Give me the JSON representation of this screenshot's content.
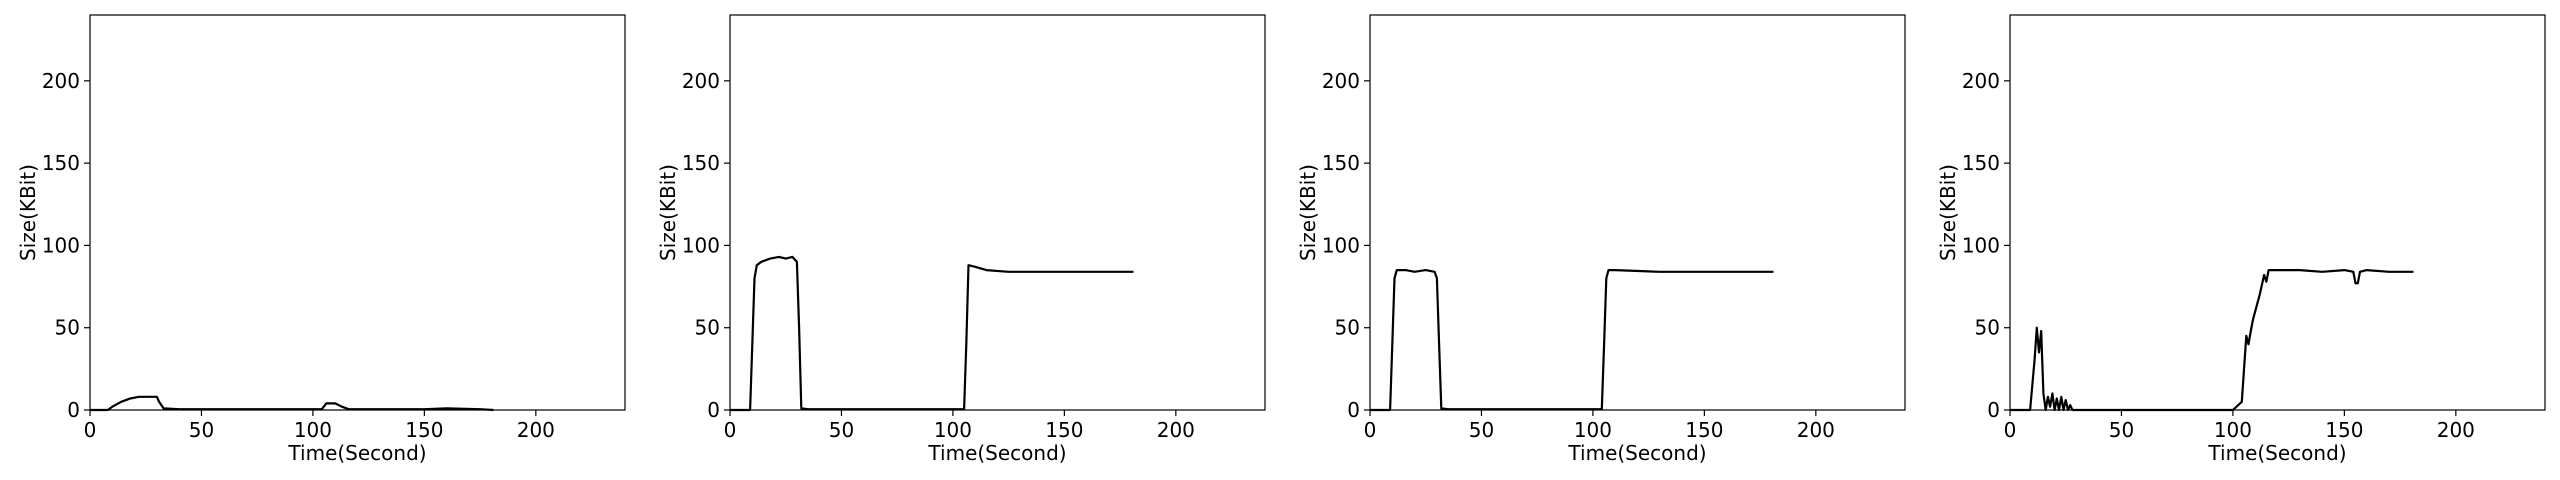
{
  "chart_data": [
    {
      "type": "line",
      "title": "",
      "xlabel": "Time(Second)",
      "ylabel": "Size(KBit)",
      "xlim": [
        0,
        240
      ],
      "ylim": [
        0,
        240
      ],
      "xticks": [
        0,
        50,
        100,
        150,
        200
      ],
      "yticks": [
        0,
        50,
        100,
        150,
        200
      ],
      "grid": false,
      "series": [
        {
          "color": "#000000",
          "x": [
            0,
            8,
            10,
            14,
            18,
            22,
            26,
            30,
            31,
            33,
            40,
            60,
            80,
            100,
            104,
            106,
            110,
            113,
            116,
            130,
            150,
            160,
            175,
            181
          ],
          "y": [
            0,
            0,
            2,
            5,
            7,
            8,
            8,
            8,
            5,
            1,
            0.5,
            0.5,
            0.5,
            0.5,
            0.5,
            4,
            4,
            2,
            0.5,
            0.5,
            0.5,
            1,
            0.5,
            0
          ]
        }
      ]
    },
    {
      "type": "line",
      "title": "",
      "xlabel": "Time(Second)",
      "ylabel": "Size(KBit)",
      "xlim": [
        0,
        240
      ],
      "ylim": [
        0,
        240
      ],
      "xticks": [
        0,
        50,
        100,
        150,
        200
      ],
      "yticks": [
        0,
        50,
        100,
        150,
        200
      ],
      "grid": false,
      "series": [
        {
          "color": "#000000",
          "x": [
            0,
            9,
            10,
            11,
            12,
            14,
            18,
            22,
            25,
            28,
            30,
            31,
            32,
            35,
            60,
            80,
            100,
            105,
            106,
            107,
            110,
            115,
            125,
            140,
            160,
            175,
            181
          ],
          "y": [
            0,
            0,
            40,
            80,
            88,
            90,
            92,
            93,
            92,
            93,
            90,
            50,
            1,
            0.5,
            0.5,
            0.5,
            0.5,
            0.5,
            40,
            88,
            87,
            85,
            84,
            84,
            84,
            84,
            84
          ]
        }
      ]
    },
    {
      "type": "line",
      "title": "",
      "xlabel": "Time(Second)",
      "ylabel": "Size(KBit)",
      "xlim": [
        0,
        240
      ],
      "ylim": [
        0,
        240
      ],
      "xticks": [
        0,
        50,
        100,
        150,
        200
      ],
      "yticks": [
        0,
        50,
        100,
        150,
        200
      ],
      "grid": false,
      "series": [
        {
          "color": "#000000",
          "x": [
            0,
            9,
            10,
            11,
            12,
            16,
            20,
            25,
            29,
            30,
            31,
            32,
            35,
            60,
            80,
            100,
            104,
            105,
            106,
            107,
            110,
            130,
            150,
            170,
            181
          ],
          "y": [
            0,
            0,
            40,
            80,
            85,
            85,
            84,
            85,
            84,
            80,
            40,
            1,
            0.5,
            0.5,
            0.5,
            0.5,
            0.5,
            40,
            80,
            85,
            85,
            84,
            84,
            84,
            84
          ]
        }
      ]
    },
    {
      "type": "line",
      "title": "",
      "xlabel": "Time(Second)",
      "ylabel": "Size(KBit)",
      "xlim": [
        0,
        240
      ],
      "ylim": [
        0,
        240
      ],
      "xticks": [
        0,
        50,
        100,
        150,
        200
      ],
      "yticks": [
        0,
        50,
        100,
        150,
        200
      ],
      "grid": false,
      "series": [
        {
          "color": "#000000",
          "x": [
            0,
            9,
            11,
            12,
            13,
            14,
            15,
            16,
            17,
            18,
            19,
            20,
            21,
            22,
            23,
            24,
            25,
            26,
            27,
            28,
            30,
            40,
            60,
            80,
            100,
            104,
            106,
            107,
            108,
            109,
            110,
            112,
            114,
            115,
            116,
            120,
            130,
            140,
            150,
            154,
            155,
            156,
            157,
            160,
            170,
            181
          ],
          "y": [
            0,
            0,
            30,
            50,
            35,
            48,
            10,
            0,
            8,
            2,
            10,
            0,
            7,
            0,
            8,
            0,
            6,
            0,
            3,
            0,
            0,
            0,
            0,
            0,
            0,
            5,
            45,
            40,
            48,
            55,
            60,
            70,
            82,
            78,
            85,
            85,
            85,
            84,
            85,
            84,
            77,
            77,
            84,
            85,
            84,
            84
          ]
        }
      ]
    }
  ]
}
